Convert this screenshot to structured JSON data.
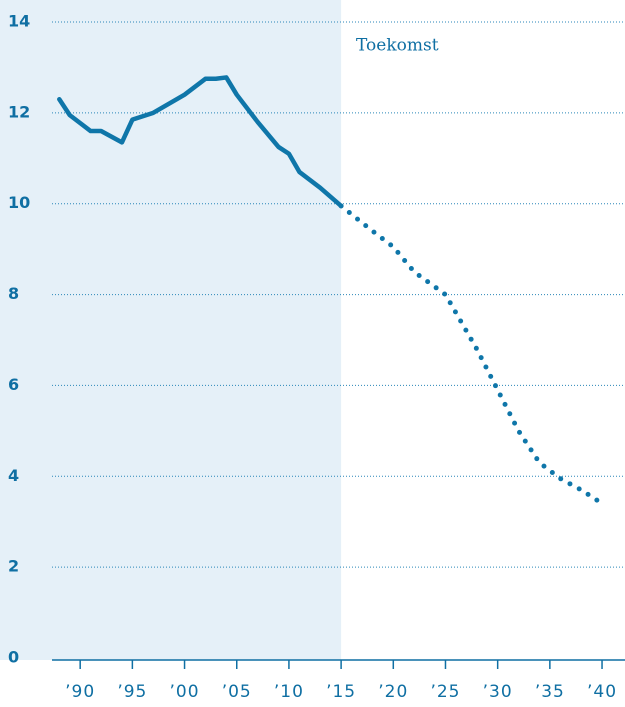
{
  "chart_data": {
    "type": "line",
    "annotation": "Toekomst",
    "shade_xmax": 2015,
    "series": [
      {
        "color": "#0f76a9",
        "style": "solid",
        "x": [
          1988,
          1989,
          1991,
          1992,
          1994,
          1995,
          1997,
          2000,
          2002,
          2003,
          2004,
          2005,
          2007,
          2009,
          2010,
          2011,
          2013,
          2015
        ],
        "values": [
          12.3,
          11.95,
          11.6,
          11.6,
          11.35,
          11.85,
          12.0,
          12.4,
          12.75,
          12.75,
          12.78,
          12.4,
          11.8,
          11.25,
          11.1,
          10.7,
          10.35,
          9.95
        ]
      },
      {
        "color": "#0f76a9",
        "style": "dotted",
        "x": [
          2015,
          2018,
          2020,
          2022,
          2025,
          2028,
          2030,
          2032,
          2034,
          2036,
          2038,
          2040
        ],
        "values": [
          9.95,
          9.4,
          9.05,
          8.5,
          8.0,
          6.8,
          5.9,
          5.0,
          4.3,
          3.95,
          3.7,
          3.4
        ]
      }
    ],
    "xlim": [
      1987.3,
      2042.2
    ],
    "xticks": [
      {
        "value": 1990,
        "label": "’90"
      },
      {
        "value": 1995,
        "label": "’95"
      },
      {
        "value": 2000,
        "label": "’00"
      },
      {
        "value": 2005,
        "label": "’05"
      },
      {
        "value": 2010,
        "label": "’10"
      },
      {
        "value": 2015,
        "label": "’15"
      },
      {
        "value": 2020,
        "label": "’20"
      },
      {
        "value": 2025,
        "label": "’25"
      },
      {
        "value": 2030,
        "label": "’30"
      },
      {
        "value": 2035,
        "label": "’35"
      },
      {
        "value": 2040,
        "label": "’40"
      }
    ],
    "ylim": [
      0,
      14
    ],
    "yticks": [
      0,
      2,
      4,
      6,
      8,
      10,
      12,
      14
    ],
    "grid": true
  }
}
